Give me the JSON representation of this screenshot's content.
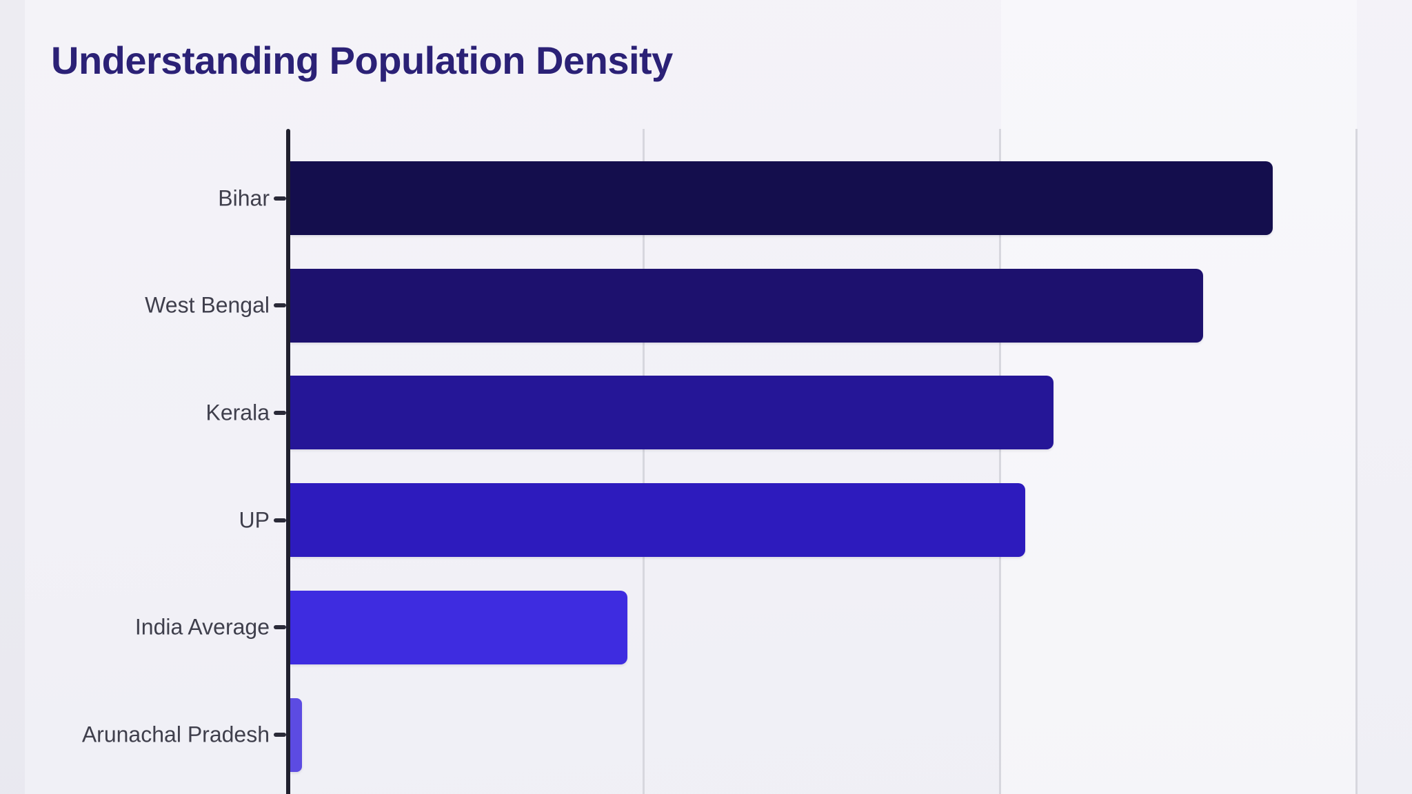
{
  "header": {
    "title": "Understanding Population Density"
  },
  "colors": {
    "title_text": "#2b2176",
    "label_text": "#3f3f4c",
    "axis_line": "#20202e",
    "tick_mark": "#2a2a38",
    "gridline": "#d7d7de",
    "background": "#f2f1f7"
  },
  "chart_data": {
    "type": "bar",
    "orientation": "horizontal",
    "title": "Understanding Population Density",
    "categories": [
      "Bihar",
      "West Bengal",
      "Kerala",
      "UP",
      "India Average",
      "Arunachal Pradesh"
    ],
    "values": [
      1106,
      1028,
      860,
      829,
      382,
      17
    ],
    "bar_colors": [
      "#140e4d",
      "#1d116e",
      "#251697",
      "#2d1bbd",
      "#3e2ce0",
      "#5c4be2"
    ],
    "xlabel": "",
    "ylabel": "",
    "xlim": [
      0,
      1263
    ],
    "x_gridlines": [
      400,
      800,
      1200
    ],
    "x_tick_labels_visible": false,
    "grid": true,
    "legend": "none",
    "bars_start_at_axis": true
  }
}
